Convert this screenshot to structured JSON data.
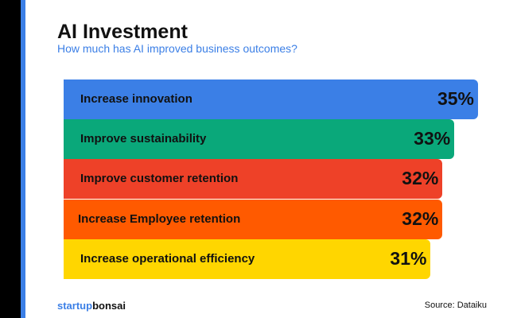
{
  "chart_data": {
    "type": "bar",
    "orientation": "horizontal",
    "title": "AI Investment",
    "subtitle": "How much has AI improved business outcomes?",
    "categories": [
      "Increase innovation",
      "Improve sustainability",
      "Improve customer retention",
      "Increase Employee retention",
      "Increase operational efficiency"
    ],
    "values": [
      35,
      33,
      32,
      32,
      31
    ],
    "value_labels": [
      "35%",
      "33%",
      "32%",
      "32%",
      "31%"
    ],
    "colors": [
      "#3b7fe6",
      "#0aa87a",
      "#ee4128",
      "#ff5a00",
      "#ffd600"
    ],
    "xlim": [
      0,
      35
    ]
  },
  "footer": {
    "logo_part1": "startup",
    "logo_part2": "bonsai",
    "source": "Source: Dataiku"
  }
}
